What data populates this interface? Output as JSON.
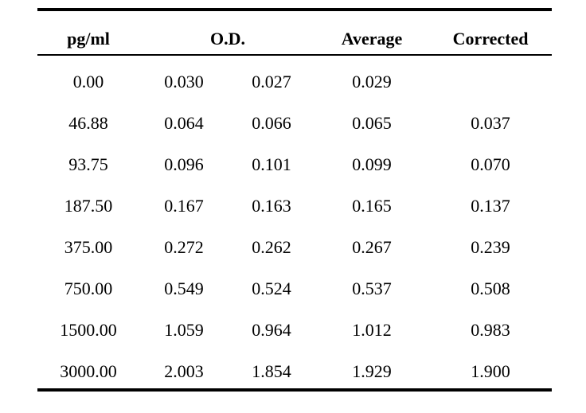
{
  "table": {
    "headers": {
      "concentration": "pg/ml",
      "od": "O.D.",
      "average": "Average",
      "corrected": "Corrected"
    },
    "rows": [
      {
        "conc": "0.00",
        "od1": "0.030",
        "od2": "0.027",
        "avg": "0.029",
        "corr": ""
      },
      {
        "conc": "46.88",
        "od1": "0.064",
        "od2": "0.066",
        "avg": "0.065",
        "corr": "0.037"
      },
      {
        "conc": "93.75",
        "od1": "0.096",
        "od2": "0.101",
        "avg": "0.099",
        "corr": "0.070"
      },
      {
        "conc": "187.50",
        "od1": "0.167",
        "od2": "0.163",
        "avg": "0.165",
        "corr": "0.137"
      },
      {
        "conc": "375.00",
        "od1": "0.272",
        "od2": "0.262",
        "avg": "0.267",
        "corr": "0.239"
      },
      {
        "conc": "750.00",
        "od1": "0.549",
        "od2": "0.524",
        "avg": "0.537",
        "corr": "0.508"
      },
      {
        "conc": "1500.00",
        "od1": "1.059",
        "od2": "0.964",
        "avg": "1.012",
        "corr": "0.983"
      },
      {
        "conc": "3000.00",
        "od1": "2.003",
        "od2": "1.854",
        "avg": "1.929",
        "corr": "1.900"
      }
    ]
  }
}
